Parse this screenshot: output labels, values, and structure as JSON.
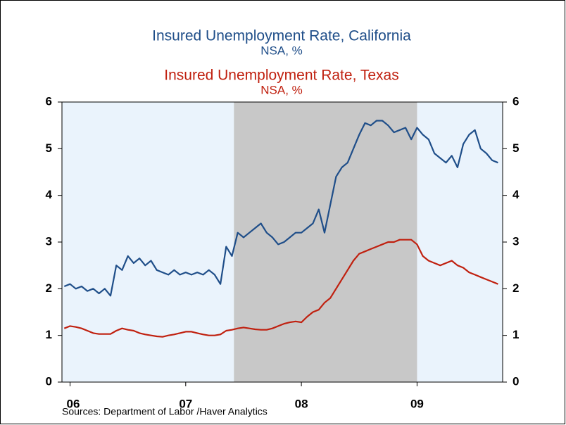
{
  "chart_data": {
    "type": "line",
    "series": [
      {
        "name": "Insured Unemployment Rate, California",
        "units": "NSA, %",
        "color": "#1f4e89",
        "values": [
          2.05,
          2.1,
          2.0,
          2.05,
          1.95,
          2.0,
          1.9,
          2.0,
          1.85,
          2.5,
          2.4,
          2.7,
          2.55,
          2.65,
          2.5,
          2.6,
          2.4,
          2.35,
          2.3,
          2.4,
          2.3,
          2.35,
          2.3,
          2.35,
          2.3,
          2.4,
          2.3,
          2.1,
          2.9,
          2.7,
          3.2,
          3.1,
          3.2,
          3.3,
          3.4,
          3.2,
          3.1,
          2.95,
          3.0,
          3.1,
          3.2,
          3.2,
          3.3,
          3.4,
          3.7,
          3.2,
          3.8,
          4.4,
          4.6,
          4.7,
          5.0,
          5.3,
          5.55,
          5.5,
          5.6,
          5.6,
          5.5,
          5.35,
          5.4,
          5.45,
          5.2,
          5.45,
          5.3,
          5.2,
          4.9,
          4.8,
          4.7,
          4.85,
          4.6,
          5.1,
          5.3,
          5.4,
          5.0,
          4.9,
          4.75,
          4.7
        ]
      },
      {
        "name": "Insured Unemployment Rate, Texas",
        "units": "NSA, %",
        "color": "#c0200f",
        "values": [
          1.15,
          1.2,
          1.18,
          1.15,
          1.1,
          1.05,
          1.03,
          1.03,
          1.03,
          1.1,
          1.15,
          1.12,
          1.1,
          1.05,
          1.02,
          1.0,
          0.98,
          0.97,
          1.0,
          1.02,
          1.05,
          1.08,
          1.08,
          1.05,
          1.02,
          1.0,
          1.0,
          1.02,
          1.1,
          1.12,
          1.15,
          1.17,
          1.15,
          1.13,
          1.12,
          1.12,
          1.15,
          1.2,
          1.25,
          1.28,
          1.3,
          1.28,
          1.4,
          1.5,
          1.55,
          1.7,
          1.8,
          2.0,
          2.2,
          2.4,
          2.6,
          2.75,
          2.8,
          2.85,
          2.9,
          2.95,
          3.0,
          3.0,
          3.05,
          3.05,
          3.05,
          2.95,
          2.7,
          2.6,
          2.55,
          2.5,
          2.55,
          2.6,
          2.5,
          2.45,
          2.35,
          2.3,
          2.25,
          2.2,
          2.15,
          2.1
        ]
      }
    ],
    "x": [
      2006.45,
      2006.5,
      2006.55,
      2006.6,
      2006.65,
      2006.7,
      2006.75,
      2006.8,
      2006.85,
      2006.9,
      2006.95,
      2007.0,
      2007.05,
      2007.1,
      2007.15,
      2007.2,
      2007.25,
      2007.3,
      2007.35,
      2007.4,
      2007.45,
      2007.5,
      2007.55,
      2007.6,
      2007.65,
      2007.7,
      2007.75,
      2007.8,
      2007.85,
      2007.9,
      2007.95,
      2008.0,
      2008.05,
      2008.1,
      2008.15,
      2008.2,
      2008.25,
      2008.3,
      2008.35,
      2008.4,
      2008.45,
      2008.5,
      2008.55,
      2008.6,
      2008.65,
      2008.7,
      2008.75,
      2008.8,
      2008.85,
      2008.9,
      2008.95,
      2009.0,
      2009.05,
      2009.1,
      2009.15,
      2009.2,
      2009.25,
      2009.3,
      2009.35,
      2009.4,
      2009.45,
      2009.5,
      2009.55,
      2009.6,
      2009.65,
      2009.7,
      2009.75,
      2009.8,
      2009.85,
      2009.9,
      2009.95,
      2010.0,
      2010.05,
      2010.1,
      2010.15,
      2010.2
    ],
    "xlim": [
      2006.43,
      2010.24
    ],
    "xticks": [
      {
        "value": 2006.5,
        "label": "06"
      },
      {
        "value": 2007.5,
        "label": "07"
      },
      {
        "value": 2008.5,
        "label": "08"
      },
      {
        "value": 2009.5,
        "label": "09"
      }
    ],
    "ylim": [
      0,
      6
    ],
    "yticks": [
      0,
      1,
      2,
      3,
      4,
      5,
      6
    ],
    "y2lim": [
      0,
      6
    ],
    "y2ticks": [
      0,
      1,
      2,
      3,
      4,
      5,
      6
    ],
    "shading": [
      2007.917,
      2009.5
    ],
    "source": "Sources:  Department of Labor /Haver Analytics"
  }
}
